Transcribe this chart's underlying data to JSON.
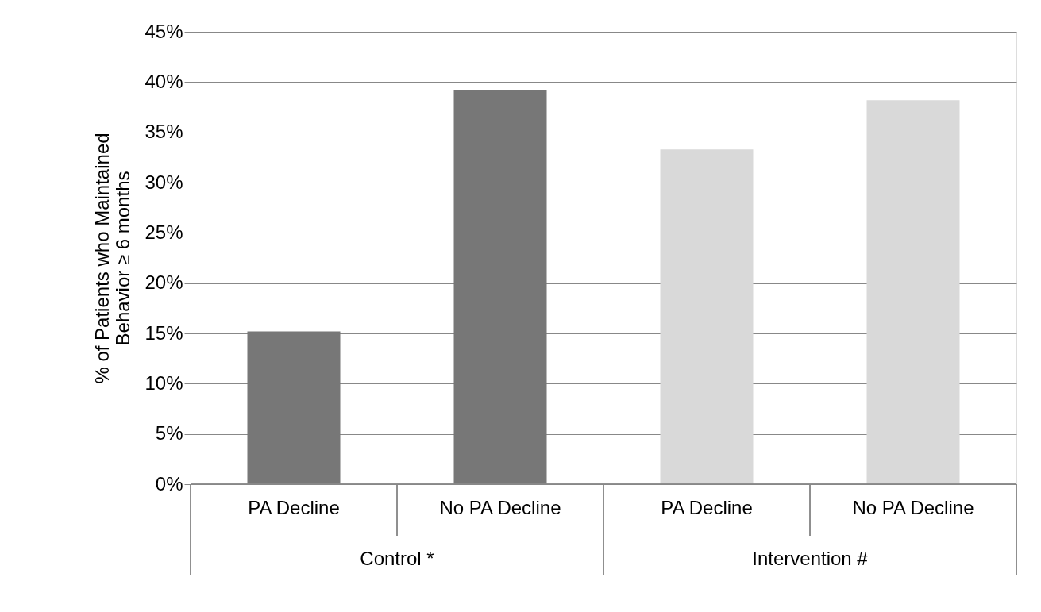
{
  "chart_data": {
    "type": "bar",
    "categories": [
      "PA Decline",
      "No PA Decline",
      "PA Decline",
      "No PA Decline"
    ],
    "values": [
      15.2,
      39.2,
      33.3,
      38.2
    ],
    "colors": [
      "#777777",
      "#777777",
      "#d9d9d9",
      "#d9d9d9"
    ],
    "ylabel": "% of Patients who Maintained\nBehavior ≥ 6 months",
    "ylim": [
      0,
      45
    ],
    "yticks": [
      {
        "value": 0,
        "label": "0%"
      },
      {
        "value": 5,
        "label": "5%"
      },
      {
        "value": 10,
        "label": "10%"
      },
      {
        "value": 15,
        "label": "15%"
      },
      {
        "value": 20,
        "label": "20%"
      },
      {
        "value": 25,
        "label": "25%"
      },
      {
        "value": 30,
        "label": "30%"
      },
      {
        "value": 35,
        "label": "35%"
      },
      {
        "value": 40,
        "label": "40%"
      },
      {
        "value": 45,
        "label": "45%"
      }
    ],
    "grid": "y",
    "annotations": [
      "Control *",
      "Intervention #"
    ]
  }
}
